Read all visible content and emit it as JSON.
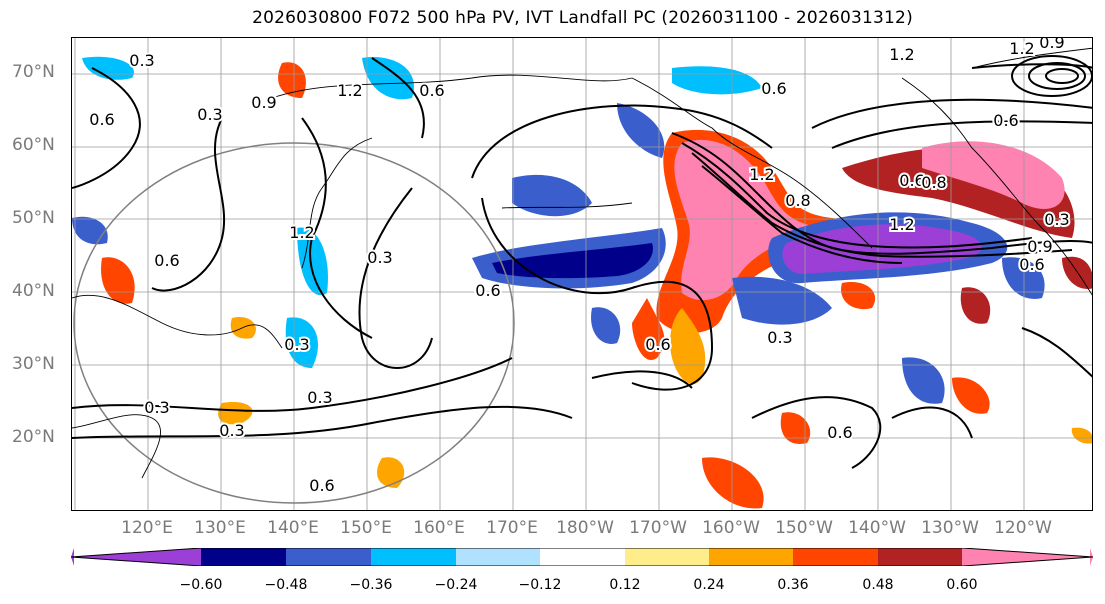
{
  "title": "2026030800 F072 500 hPa PV, IVT Landfall PC (2026031100 - 2026031312)",
  "lat_labels": [
    "70°N",
    "60°N",
    "50°N",
    "40°N",
    "30°N",
    "20°N"
  ],
  "lon_labels": [
    "120°E",
    "130°E",
    "140°E",
    "150°E",
    "160°E",
    "170°E",
    "180°W",
    "170°W",
    "160°W",
    "150°W",
    "140°W",
    "130°W",
    "120°W"
  ],
  "colorbar": {
    "ticks": [
      "−0.60",
      "−0.48",
      "−0.36",
      "−0.24",
      "−0.12",
      "0.12",
      "0.24",
      "0.36",
      "0.48",
      "0.60"
    ],
    "colors": [
      "#9b3fd6",
      "#00008b",
      "#3a5fcd",
      "#00bfff",
      "#b0e2ff",
      "#ffffff",
      "#ffec8b",
      "#ffa500",
      "#ff4500",
      "#b22222",
      "#ff83b0"
    ]
  },
  "contour_labels": [
    "0.3",
    "0.6",
    "0.9",
    "1.2",
    "0.3",
    "0.6",
    "0.6",
    "0.6",
    "1.2",
    "0.9",
    "0.6",
    "0.6",
    "0.3",
    "0.3",
    "0.3",
    "0.3",
    "0.3",
    "0.6",
    "0.6",
    "1.2",
    "0.6",
    "0.3",
    "0.6",
    "0.3",
    "0.8",
    "1.2",
    "1.2",
    "0.6",
    "0.9",
    "1.2",
    "0.8"
  ]
}
